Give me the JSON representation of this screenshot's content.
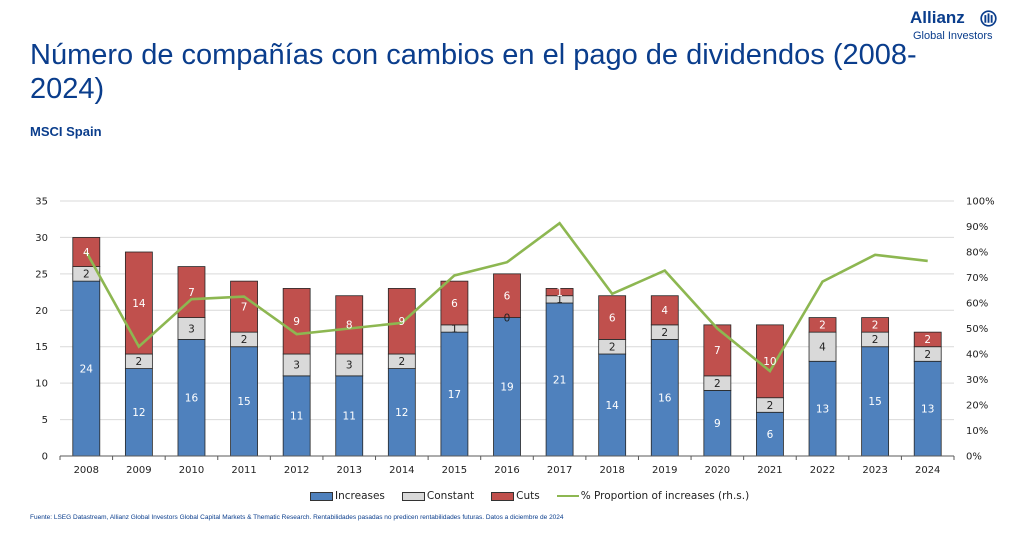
{
  "header": {
    "title": "Número de compañías con cambios en el pago de dividendos (2008-2024)",
    "subtitle": "MSCI Spain"
  },
  "logo": {
    "name": "Allianz",
    "sub": "Global Investors",
    "icon": "allianz-eagle-icon"
  },
  "colors": {
    "brand": "#0a3d8c",
    "increases": "#4f81bd",
    "constant": "#d9d9d9",
    "cuts": "#c0504d",
    "line": "#8db751"
  },
  "chart_data": {
    "type": "bar",
    "stacked": true,
    "title": "Número de compañías con cambios en el pago de dividendos (2008-2024)",
    "subtitle": "MSCI Spain",
    "xlabel": "",
    "ylabel": "",
    "ylim": [
      0,
      35
    ],
    "yticks": [
      "0",
      "5",
      "10",
      "15",
      "20",
      "25",
      "30",
      "35"
    ],
    "y2lim": [
      0,
      100
    ],
    "y2ticks": [
      "0%",
      "10%",
      "20%",
      "30%",
      "40%",
      "50%",
      "60%",
      "70%",
      "80%",
      "90%",
      "100%"
    ],
    "grid": true,
    "legend_position": "bottom",
    "categories": [
      "2008",
      "2009",
      "2010",
      "2011",
      "2012",
      "2013",
      "2014",
      "2015",
      "2016",
      "2017",
      "2018",
      "2019",
      "2020",
      "2021",
      "2022",
      "2023",
      "2024"
    ],
    "series": [
      {
        "name": "Increases",
        "type": "bar",
        "axis": "left",
        "values": [
          24,
          12,
          16,
          15,
          11,
          11,
          12,
          17,
          19,
          21,
          14,
          16,
          9,
          6,
          13,
          15,
          13
        ]
      },
      {
        "name": "Constant",
        "type": "bar",
        "axis": "left",
        "values": [
          2,
          2,
          3,
          2,
          3,
          3,
          2,
          1,
          0,
          1,
          2,
          2,
          2,
          2,
          4,
          2,
          2
        ]
      },
      {
        "name": "Cuts",
        "type": "bar",
        "axis": "left",
        "values": [
          4,
          14,
          7,
          7,
          9,
          8,
          9,
          6,
          6,
          1,
          6,
          4,
          7,
          10,
          2,
          2,
          2
        ]
      },
      {
        "name": "% Proportion of increases (rh.s.)",
        "type": "line",
        "axis": "right",
        "values": [
          80.0,
          42.9,
          61.5,
          62.5,
          47.8,
          50.0,
          52.2,
          70.8,
          76.0,
          91.3,
          63.6,
          72.7,
          50.0,
          33.3,
          68.4,
          78.9,
          76.5
        ]
      }
    ]
  },
  "legend": [
    {
      "label": "Increases",
      "kind": "box"
    },
    {
      "label": "Constant",
      "kind": "box"
    },
    {
      "label": "Cuts",
      "kind": "box"
    },
    {
      "label": "% Proportion of increases (rh.s.)",
      "kind": "line"
    }
  ],
  "footer": {
    "source": "Fuente: LSEG Datastream, Allianz Global Investors Global Capital Markets & Thematic Research. Rentabilidades pasadas no predicen rentabilidades futuras. Datos a diciembre de 2024"
  }
}
